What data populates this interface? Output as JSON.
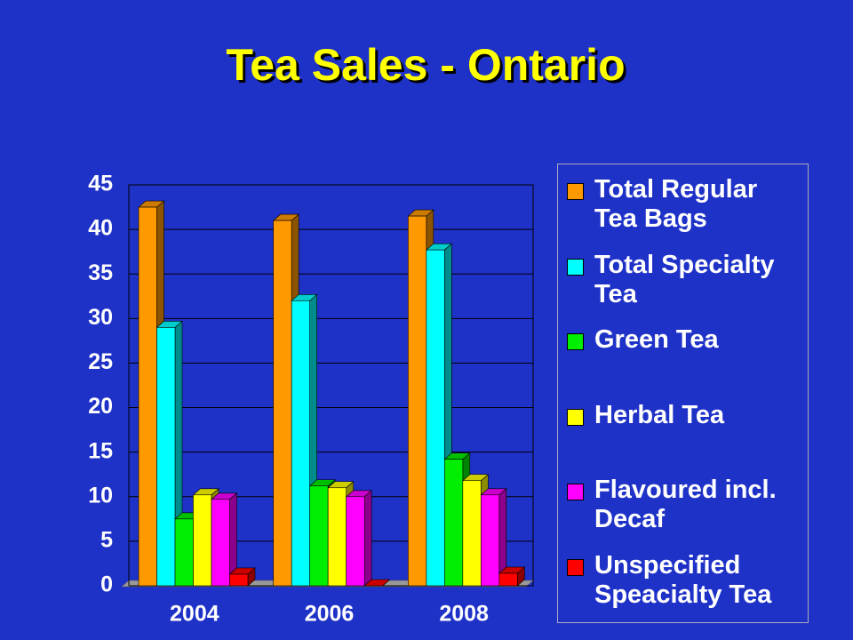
{
  "chart_data": {
    "type": "bar",
    "title": "Tea Sales - Ontario",
    "categories": [
      "2004",
      "2006",
      "2008"
    ],
    "series": [
      {
        "name": "Total Regular Tea Bags",
        "color": "#ff9900",
        "values": [
          42.5,
          41,
          41.5
        ]
      },
      {
        "name": "Total Specialty Tea",
        "color": "#00ffff",
        "values": [
          29,
          32,
          37.7
        ]
      },
      {
        "name": "Green Tea",
        "color": "#00ee00",
        "values": [
          7.5,
          11.2,
          14.2
        ]
      },
      {
        "name": "Herbal Tea",
        "color": "#ffff00",
        "values": [
          10.2,
          11,
          11.8
        ]
      },
      {
        "name": "Flavoured incl. Decaf",
        "color": "#ff00ff",
        "values": [
          9.7,
          10,
          10.2
        ]
      },
      {
        "name": "Unspecified Speacialty Tea",
        "color": "#ff0000",
        "values": [
          1.3,
          0,
          1.4
        ]
      }
    ],
    "ylim": [
      0,
      45
    ],
    "yticks": [
      0,
      5,
      10,
      15,
      20,
      25,
      30,
      35,
      40,
      45
    ],
    "grid": true,
    "legend": "right"
  }
}
